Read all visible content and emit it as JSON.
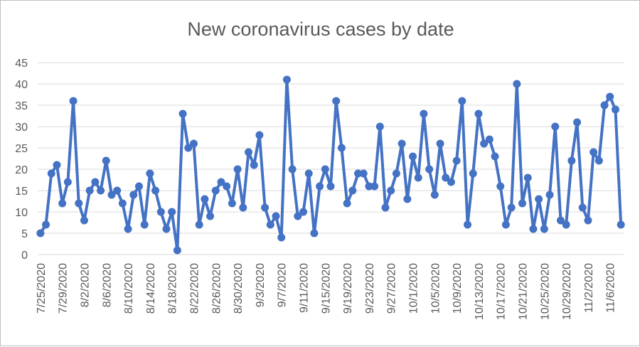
{
  "chart_data": {
    "type": "line",
    "title": "New coronavirus cases by date",
    "xlabel": "",
    "ylabel": "",
    "ylim": [
      0,
      45
    ],
    "yticks": [
      0,
      5,
      10,
      15,
      20,
      25,
      30,
      35,
      40,
      45
    ],
    "grid": true,
    "legend": "none",
    "x_start": "7/25/2020",
    "x_tick_labels": [
      "7/25/2020",
      "7/29/2020",
      "8/2/2020",
      "8/6/2020",
      "8/10/2020",
      "8/14/2020",
      "8/18/2020",
      "8/22/2020",
      "8/26/2020",
      "8/30/2020",
      "9/3/2020",
      "9/7/2020",
      "9/11/2020",
      "9/15/2020",
      "9/19/2020",
      "9/23/2020",
      "9/27/2020",
      "10/1/2020",
      "10/5/2020",
      "10/9/2020",
      "10/13/2020",
      "10/17/2020",
      "10/21/2020",
      "10/25/2020",
      "10/29/2020",
      "11/2/2020",
      "11/6/2020"
    ],
    "series": [
      {
        "color": "#4472c4",
        "values": [
          5,
          7,
          19,
          21,
          12,
          17,
          36,
          12,
          8,
          15,
          17,
          15,
          22,
          14,
          15,
          12,
          6,
          14,
          16,
          7,
          19,
          15,
          10,
          6,
          10,
          1,
          33,
          25,
          26,
          7,
          13,
          9,
          15,
          17,
          16,
          12,
          20,
          11,
          24,
          21,
          28,
          11,
          7,
          9,
          4,
          41,
          20,
          9,
          10,
          19,
          5,
          16,
          20,
          16,
          36,
          25,
          12,
          15,
          19,
          19,
          16,
          16,
          30,
          11,
          15,
          19,
          26,
          13,
          23,
          18,
          33,
          20,
          14,
          26,
          18,
          17,
          22,
          36,
          7,
          19,
          33,
          26,
          27,
          23,
          16,
          7,
          11,
          40,
          12,
          18,
          6,
          13,
          6,
          14,
          30,
          8,
          7,
          22,
          31,
          11,
          8,
          24,
          22,
          35,
          37,
          34,
          7
        ]
      }
    ]
  }
}
